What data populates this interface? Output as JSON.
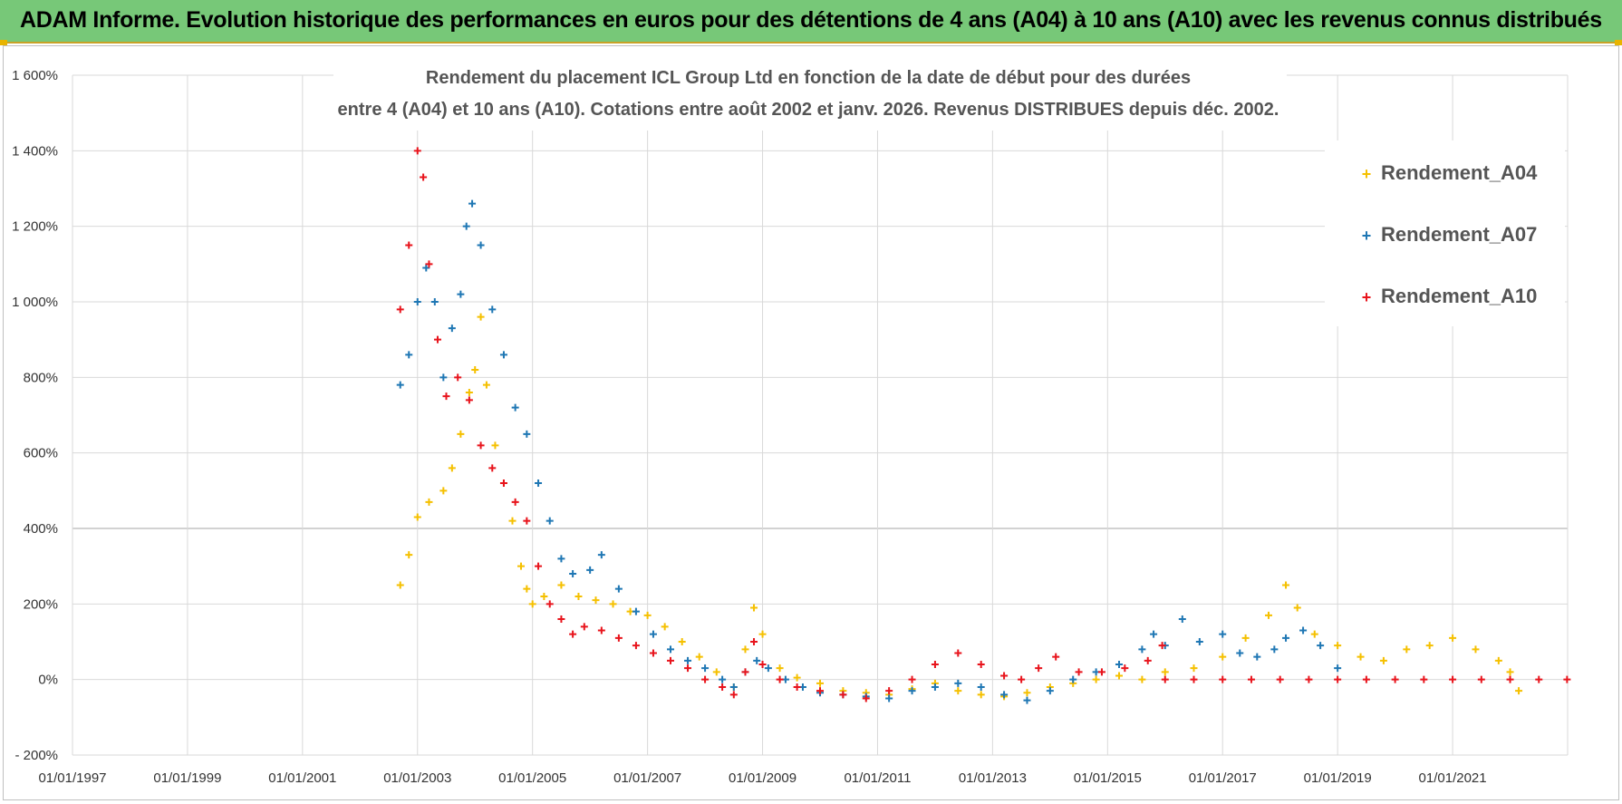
{
  "banner": {
    "title": "ADAM Informe. Evolution historique des performances en euros pour des détentions de 4 ans (A04) à 10 ans (A10) avec les revenus connus distribués"
  },
  "chart_data": {
    "type": "scatter",
    "title_line1": "Rendement du placement ICL Group Ltd en fonction de la date de début pour des durées",
    "title_line2": "entre 4 (A04) et 10 ans (A10).  Cotations entre août 2002  et janv. 2026.  Revenus DISTRIBUES depuis déc. 2002.",
    "xlabel": "",
    "ylabel": "",
    "xlim": [
      1997.0,
      2023.0
    ],
    "ylim": [
      -200,
      1600
    ],
    "x_ticks": [
      1997,
      1999,
      2001,
      2003,
      2005,
      2007,
      2009,
      2011,
      2013,
      2015,
      2017,
      2019,
      2021
    ],
    "x_tick_labels": [
      "01/01/1997",
      "01/01/1999",
      "01/01/2001",
      "01/01/2003",
      "01/01/2005",
      "01/01/2007",
      "01/01/2009",
      "01/01/2011",
      "01/01/2013",
      "01/01/2015",
      "01/01/2017",
      "01/01/2019",
      "01/01/2021"
    ],
    "y_ticks": [
      -200,
      0,
      200,
      400,
      600,
      800,
      1000,
      1200,
      1400,
      1600
    ],
    "y_tick_labels": [
      "- 200%",
      "0%",
      "200%",
      "400%",
      "600%",
      "800%",
      "1 000%",
      "1 200%",
      "1 400%",
      "1 600%"
    ],
    "grid": true,
    "legend_position": "top-right",
    "marker": "+",
    "series": [
      {
        "name": "Rendement_A04",
        "color": "#f5c000",
        "x": [
          2002.7,
          2002.85,
          2003.0,
          2003.2,
          2003.45,
          2003.6,
          2003.75,
          2003.9,
          2004.0,
          2004.1,
          2004.2,
          2004.35,
          2004.5,
          2004.65,
          2004.8,
          2004.9,
          2005.0,
          2005.2,
          2005.5,
          2005.8,
          2006.1,
          2006.4,
          2006.7,
          2007.0,
          2007.3,
          2007.6,
          2007.9,
          2008.2,
          2008.5,
          2008.7,
          2008.85,
          2009.0,
          2009.3,
          2009.6,
          2010.0,
          2010.4,
          2010.8,
          2011.2,
          2011.6,
          2012.0,
          2012.4,
          2012.8,
          2013.2,
          2013.6,
          2014.0,
          2014.4,
          2014.8,
          2015.2,
          2015.6,
          2016.0,
          2016.5,
          2017.0,
          2017.4,
          2017.8,
          2018.1,
          2018.3,
          2018.6,
          2019.0,
          2019.4,
          2019.8,
          2020.2,
          2020.6,
          2021.0,
          2021.4,
          2021.8,
          2022.0,
          2022.15
        ],
        "y": [
          250,
          330,
          430,
          470,
          500,
          560,
          650,
          760,
          820,
          960,
          780,
          620,
          520,
          420,
          300,
          240,
          200,
          220,
          250,
          220,
          210,
          200,
          180,
          170,
          140,
          100,
          60,
          20,
          -20,
          80,
          190,
          120,
          30,
          5,
          -10,
          -30,
          -35,
          -40,
          -25,
          -10,
          -30,
          -40,
          -45,
          -35,
          -20,
          -10,
          0,
          10,
          0,
          20,
          30,
          60,
          110,
          170,
          250,
          190,
          120,
          90,
          60,
          50,
          80,
          90,
          110,
          80,
          50,
          20,
          -30
        ]
      },
      {
        "name": "Rendement_A07",
        "color": "#1f77b4",
        "x": [
          2002.7,
          2002.85,
          2003.0,
          2003.15,
          2003.3,
          2003.45,
          2003.6,
          2003.75,
          2003.85,
          2003.95,
          2004.1,
          2004.3,
          2004.5,
          2004.7,
          2004.9,
          2005.1,
          2005.3,
          2005.5,
          2005.7,
          2006.0,
          2006.2,
          2006.5,
          2006.8,
          2007.1,
          2007.4,
          2007.7,
          2008.0,
          2008.3,
          2008.5,
          2008.7,
          2008.9,
          2009.1,
          2009.4,
          2009.7,
          2010.0,
          2010.4,
          2010.8,
          2011.2,
          2011.6,
          2012.0,
          2012.4,
          2012.8,
          2013.2,
          2013.6,
          2014.0,
          2014.4,
          2014.8,
          2015.2,
          2015.6,
          2015.8,
          2016.0,
          2016.3,
          2016.6,
          2017.0,
          2017.3,
          2017.6,
          2017.9,
          2018.1,
          2018.4,
          2018.7,
          2019.0
        ],
        "y": [
          780,
          860,
          1000,
          1090,
          1000,
          800,
          930,
          1020,
          1200,
          1260,
          1150,
          980,
          860,
          720,
          650,
          520,
          420,
          320,
          280,
          290,
          330,
          240,
          180,
          120,
          80,
          50,
          30,
          0,
          -20,
          20,
          50,
          30,
          0,
          -20,
          -35,
          -40,
          -45,
          -50,
          -30,
          -20,
          -10,
          -20,
          -40,
          -55,
          -30,
          0,
          20,
          40,
          80,
          120,
          90,
          160,
          100,
          120,
          70,
          60,
          80,
          110,
          130,
          90,
          30
        ]
      },
      {
        "name": "Rendement_A10",
        "color": "#e8141c",
        "x": [
          2002.7,
          2002.85,
          2003.0,
          2003.1,
          2003.2,
          2003.35,
          2003.5,
          2003.7,
          2003.9,
          2004.1,
          2004.3,
          2004.5,
          2004.7,
          2004.9,
          2005.1,
          2005.3,
          2005.5,
          2005.7,
          2005.9,
          2006.2,
          2006.5,
          2006.8,
          2007.1,
          2007.4,
          2007.7,
          2008.0,
          2008.3,
          2008.5,
          2008.7,
          2008.85,
          2009.0,
          2009.3,
          2009.6,
          2010.0,
          2010.4,
          2010.8,
          2011.2,
          2011.6,
          2012.0,
          2012.4,
          2012.8,
          2013.2,
          2013.5,
          2013.8,
          2014.1,
          2014.5,
          2014.9,
          2015.3,
          2015.7,
          2015.95,
          2016.0,
          2016.5,
          2017.0,
          2017.5,
          2018.0,
          2018.5,
          2019.0,
          2019.5,
          2020.0,
          2020.5,
          2021.0,
          2021.5,
          2022.0,
          2022.5,
          2022.99
        ],
        "y": [
          980,
          1150,
          1400,
          1330,
          1100,
          900,
          750,
          800,
          740,
          620,
          560,
          520,
          470,
          420,
          300,
          200,
          160,
          120,
          140,
          130,
          110,
          90,
          70,
          50,
          30,
          0,
          -20,
          -40,
          20,
          100,
          40,
          0,
          -20,
          -30,
          -40,
          -50,
          -30,
          0,
          40,
          70,
          40,
          10,
          0,
          30,
          60,
          20,
          20,
          30,
          50,
          90,
          0,
          0,
          0,
          0,
          0,
          0,
          0,
          0,
          0,
          0,
          0,
          0,
          0,
          0,
          0
        ]
      }
    ]
  }
}
